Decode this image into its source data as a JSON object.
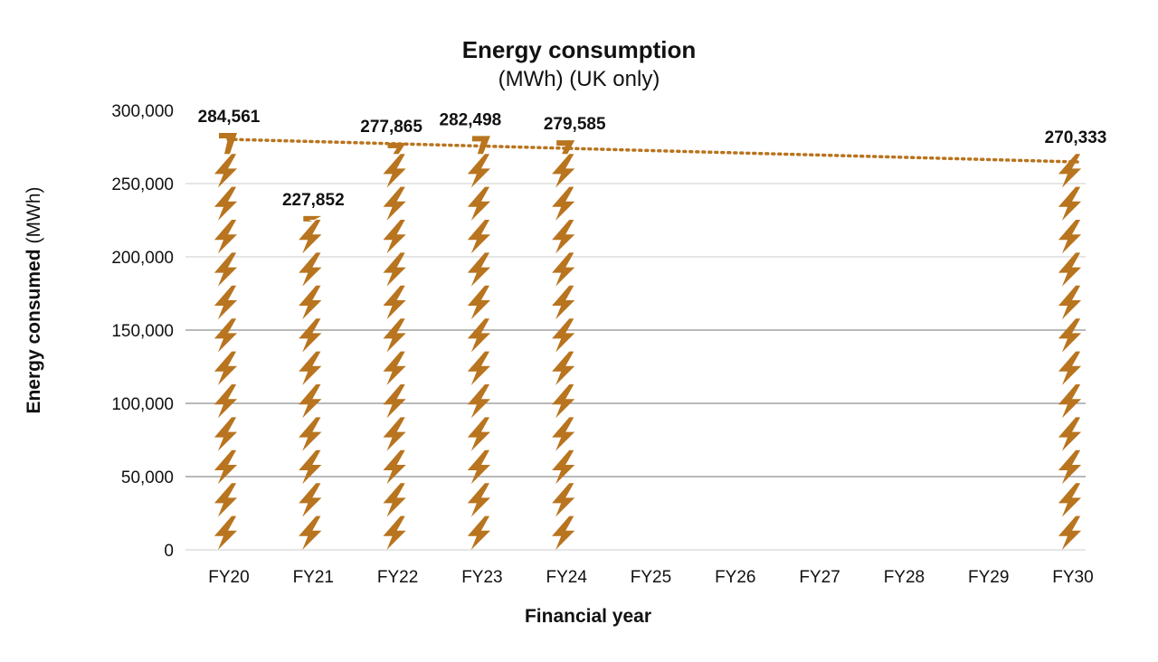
{
  "chart_data": {
    "type": "bar",
    "title": "Energy consumption",
    "subtitle": "(MWh) (UK only)",
    "xlabel": "Financial year",
    "ylabel": "Energy consumed",
    "ylabel_unit": "(MWh)",
    "categories": [
      "FY20",
      "FY21",
      "FY22",
      "FY23",
      "FY24",
      "FY25",
      "FY26",
      "FY27",
      "FY28",
      "FY29",
      "FY30"
    ],
    "values": [
      284561,
      227852,
      277865,
      282498,
      279585,
      null,
      null,
      null,
      null,
      null,
      270333
    ],
    "value_labels": [
      "284,561",
      "227,852",
      "277,865",
      "282,498",
      "279,585",
      "",
      "",
      "",
      "",
      "",
      "270,333"
    ],
    "ylim": [
      0,
      300000
    ],
    "yticks": [
      0,
      50000,
      100000,
      150000,
      200000,
      250000,
      300000
    ],
    "ytick_labels": [
      "0",
      "50,000",
      "100,000",
      "150,000",
      "200,000",
      "250,000",
      "300,000"
    ],
    "trendline": {
      "style": "dotted",
      "from": "FY20",
      "to": "FY30",
      "start": 284561,
      "end": 270333
    },
    "grid": true,
    "colors": {
      "bar": "#B8741E",
      "trend": "#B8741E",
      "grid": "#444444",
      "text": "#111111"
    }
  }
}
